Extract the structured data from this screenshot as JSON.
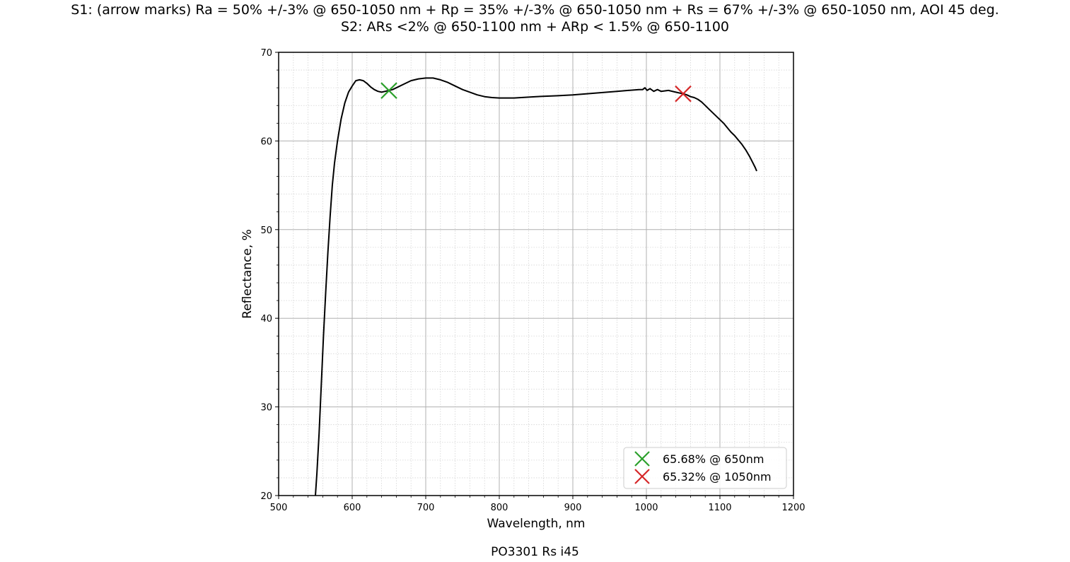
{
  "chart_data": {
    "type": "line",
    "title_lines": [
      "S1: (arrow marks)  Ra = 50% +/-3% @ 650-1050 nm + Rp = 35% +/-3% @ 650-1050 nm + Rs = 67% +/-3% @ 650-1050 nm, AOI 45 deg.",
      "S2: ARs <2% @ 650-1100 nm + ARp < 1.5% @ 650-1100"
    ],
    "xlabel": "Wavelength, nm",
    "ylabel": "Reflectance, %",
    "xlim": [
      500,
      1200
    ],
    "ylim": [
      20,
      70
    ],
    "xticks": [
      500,
      600,
      700,
      800,
      900,
      1000,
      1100,
      1200
    ],
    "yticks": [
      20,
      30,
      40,
      50,
      60,
      70
    ],
    "grid": "major solid, minor dotted",
    "legend_position": "lower right",
    "series": [
      {
        "color": "#000000",
        "x": [
          550,
          552,
          555,
          558,
          561,
          564,
          567,
          570,
          573,
          576,
          580,
          585,
          590,
          595,
          600,
          605,
          610,
          615,
          620,
          625,
          630,
          635,
          640,
          645,
          650,
          655,
          660,
          670,
          680,
          690,
          700,
          710,
          720,
          730,
          740,
          750,
          760,
          770,
          780,
          790,
          800,
          820,
          850,
          880,
          900,
          930,
          960,
          990,
          995,
          998,
          1001,
          1005,
          1010,
          1015,
          1020,
          1030,
          1040,
          1050,
          1055,
          1060,
          1065,
          1070,
          1075,
          1080,
          1085,
          1090,
          1095,
          1100,
          1105,
          1110,
          1115,
          1120,
          1125,
          1130,
          1135,
          1140,
          1145,
          1148,
          1150
        ],
        "y": [
          20,
          22.5,
          27,
          32.5,
          38,
          43,
          47.5,
          51.5,
          55,
          57.5,
          60,
          62.5,
          64.3,
          65.5,
          66.2,
          66.8,
          66.9,
          66.8,
          66.5,
          66.1,
          65.8,
          65.6,
          65.5,
          65.6,
          65.7,
          65.8,
          66.0,
          66.4,
          66.8,
          67.0,
          67.1,
          67.1,
          66.9,
          66.6,
          66.2,
          65.8,
          65.5,
          65.2,
          65.0,
          64.9,
          64.85,
          64.85,
          65.0,
          65.1,
          65.2,
          65.4,
          65.6,
          65.8,
          65.8,
          66.0,
          65.7,
          65.9,
          65.6,
          65.8,
          65.6,
          65.7,
          65.5,
          65.32,
          65.2,
          65.0,
          64.9,
          64.7,
          64.4,
          64.0,
          63.6,
          63.2,
          62.8,
          62.4,
          62.0,
          61.5,
          61.0,
          60.6,
          60.1,
          59.6,
          59.0,
          58.3,
          57.5,
          57.0,
          56.6
        ]
      }
    ],
    "markers": [
      {
        "label": "65.68% @ 650nm",
        "x": 650,
        "y": 65.68,
        "symbol": "x",
        "color": "#2ca02c"
      },
      {
        "label": "65.32% @ 1050nm",
        "x": 1050,
        "y": 65.32,
        "symbol": "x",
        "color": "#d62728"
      }
    ]
  },
  "caption": "PO3301 Rs i45"
}
